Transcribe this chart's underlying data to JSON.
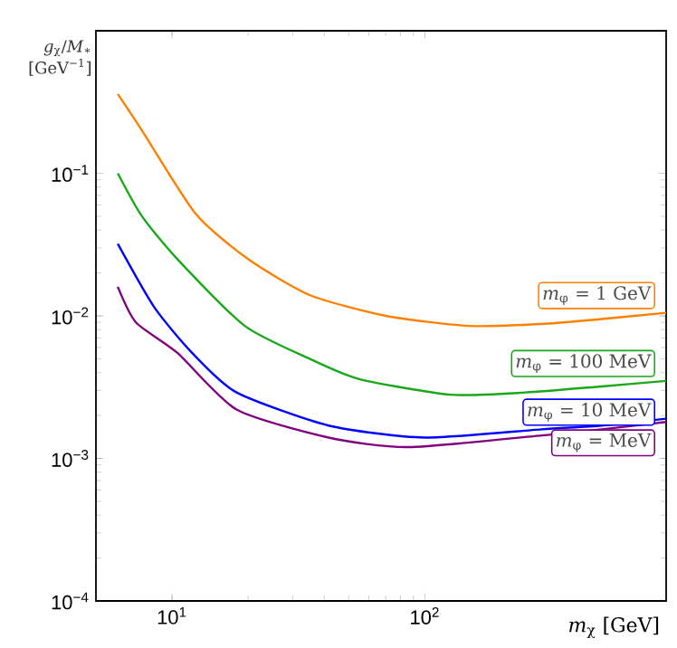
{
  "chart_data": {
    "type": "line",
    "xlabel": "*m*$_{χ}$ [GeV]",
    "ylabel": "*g*$_{χ}$/*M*$_{∗}$ [GeV$^{−1}$]",
    "log": "xy",
    "grid": false,
    "legend": "right",
    "marker": "none",
    "line_style": "solid",
    "xlim": [
      5,
      900
    ],
    "ylim": [
      0.0001,
      1
    ],
    "xticks": [
      {
        "value": 10,
        "label": "10$^{1}$"
      },
      {
        "value": 100,
        "label": "10$^{2}$"
      }
    ],
    "yticks": [
      {
        "value": 0.0001,
        "label": "10$^{−4}$"
      },
      {
        "value": 0.001,
        "label": "10$^{−3}$"
      },
      {
        "value": 0.01,
        "label": "10$^{−2}$"
      },
      {
        "value": 0.1,
        "label": "10$^{−1}$"
      }
    ],
    "series": [
      {
        "name": "*m*$_{φ}$ = 1 GeV",
        "color": "#ff8000",
        "x": [
          6.1,
          7.6,
          12.4,
          20,
          35,
          70,
          150,
          300,
          500,
          900
        ],
        "values": [
          0.36,
          0.2,
          0.052,
          0.025,
          0.014,
          0.01,
          0.0085,
          0.0088,
          0.0095,
          0.0105
        ]
      },
      {
        "name": "*m*$_{φ}$ = 100 MeV",
        "color": "#1aa81a",
        "x": [
          6.1,
          7.6,
          10.5,
          19.4,
          35,
          55,
          126,
          250,
          500,
          900
        ],
        "values": [
          0.1,
          0.05,
          0.025,
          0.0085,
          0.005,
          0.0036,
          0.0028,
          0.0029,
          0.0032,
          0.0035
        ]
      },
      {
        "name": "*m*$_{φ}$ = 10 MeV",
        "color": "#0000ff",
        "x": [
          6.1,
          8.5,
          12,
          18,
          41.6,
          100,
          290,
          500,
          900
        ],
        "values": [
          0.032,
          0.0115,
          0.0055,
          0.0029,
          0.0017,
          0.0014,
          0.0016,
          0.0017,
          0.0019
        ]
      },
      {
        "name": "*m*$_{φ}$ =  MeV",
        "color": "#800080",
        "x": [
          6.1,
          7.2,
          10.5,
          18,
          41.6,
          86,
          290,
          500,
          900
        ],
        "values": [
          0.016,
          0.009,
          0.0055,
          0.0022,
          0.0014,
          0.0012,
          0.00145,
          0.0016,
          0.0018
        ]
      }
    ]
  }
}
